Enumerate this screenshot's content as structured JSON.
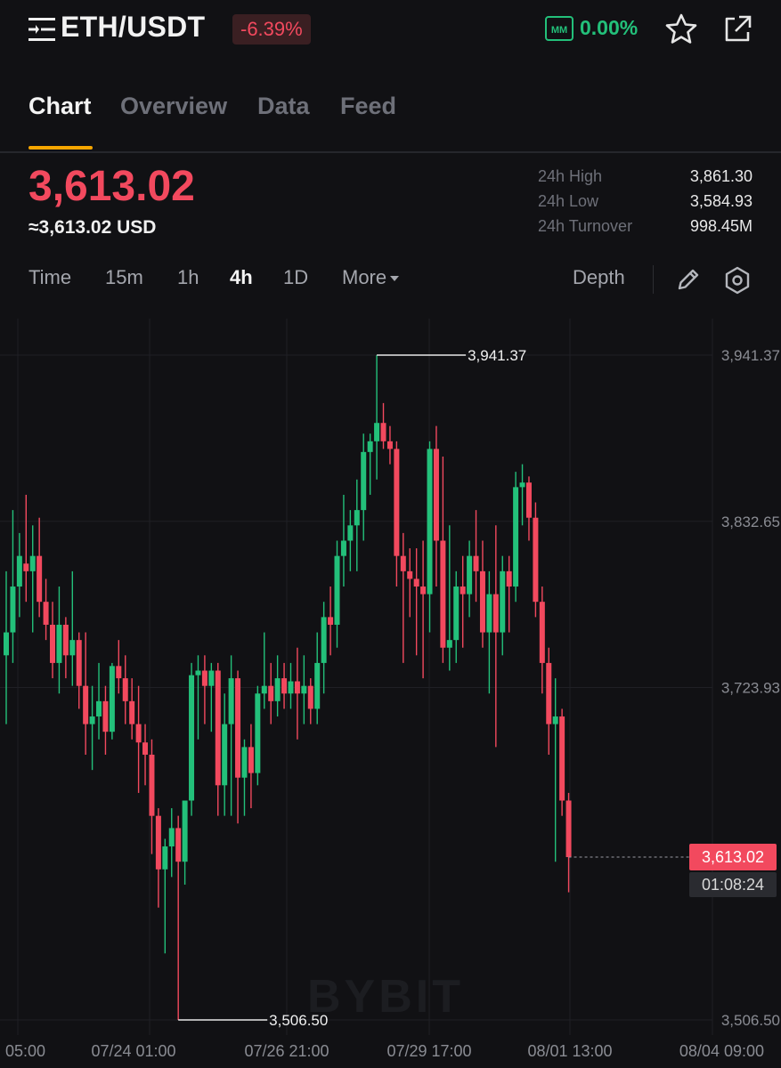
{
  "header": {
    "pair": "ETH/USDT",
    "change": "-6.39%",
    "mm_badge": "MM",
    "mm_value": "0.00%",
    "icons": [
      "menu-icon",
      "star-icon",
      "share-icon"
    ],
    "colors": {
      "down": "#f2495e",
      "up": "#23c07a",
      "accent": "#f7a600"
    }
  },
  "tabs": [
    {
      "label": "Chart",
      "active": true
    },
    {
      "label": "Overview",
      "active": false
    },
    {
      "label": "Data",
      "active": false
    },
    {
      "label": "Feed",
      "active": false
    }
  ],
  "price": {
    "last": "3,613.02",
    "usd": "≈3,613.02 USD"
  },
  "stats": [
    {
      "label": "24h High",
      "value": "3,861.30"
    },
    {
      "label": "24h Low",
      "value": "3,584.93"
    },
    {
      "label": "24h Turnover",
      "value": "998.45M"
    }
  ],
  "intervals": [
    {
      "label": "Time",
      "active": false
    },
    {
      "label": "15m",
      "active": false
    },
    {
      "label": "1h",
      "active": false
    },
    {
      "label": "4h",
      "active": true
    },
    {
      "label": "1D",
      "active": false
    },
    {
      "label": "More",
      "active": false
    }
  ],
  "toolbar": {
    "depth_label": "Depth",
    "icons": [
      "pencil-icon",
      "settings-icon"
    ]
  },
  "watermark": "BYBIT",
  "price_tag": "3,613.02",
  "countdown": "01:08:24",
  "chart_data": {
    "type": "candlestick",
    "interval": "4h",
    "y_ticks": [
      "3,941.37",
      "3,832.65",
      "3,723.93",
      "3,506.50"
    ],
    "x_ticks": [
      "05:00",
      "07/24 01:00",
      "07/26 21:00",
      "07/29 17:00",
      "08/01 13:00",
      "08/04 09:00"
    ],
    "ylim": [
      3506.5,
      3941.37
    ],
    "high_label": "3,941.37",
    "low_label": "3,506.50",
    "last_price": 3613.02,
    "candles": [
      {
        "o": 3745,
        "h": 3800,
        "l": 3700,
        "c": 3760
      },
      {
        "o": 3760,
        "h": 3840,
        "l": 3740,
        "c": 3790
      },
      {
        "o": 3790,
        "h": 3825,
        "l": 3770,
        "c": 3810
      },
      {
        "o": 3805,
        "h": 3850,
        "l": 3780,
        "c": 3800
      },
      {
        "o": 3800,
        "h": 3830,
        "l": 3760,
        "c": 3810
      },
      {
        "o": 3810,
        "h": 3835,
        "l": 3770,
        "c": 3780
      },
      {
        "o": 3780,
        "h": 3795,
        "l": 3755,
        "c": 3765
      },
      {
        "o": 3765,
        "h": 3780,
        "l": 3730,
        "c": 3740
      },
      {
        "o": 3740,
        "h": 3790,
        "l": 3720,
        "c": 3765
      },
      {
        "o": 3765,
        "h": 3770,
        "l": 3730,
        "c": 3745
      },
      {
        "o": 3745,
        "h": 3800,
        "l": 3725,
        "c": 3755
      },
      {
        "o": 3755,
        "h": 3760,
        "l": 3710,
        "c": 3725
      },
      {
        "o": 3725,
        "h": 3760,
        "l": 3680,
        "c": 3700
      },
      {
        "o": 3700,
        "h": 3725,
        "l": 3670,
        "c": 3705
      },
      {
        "o": 3705,
        "h": 3740,
        "l": 3690,
        "c": 3715
      },
      {
        "o": 3715,
        "h": 3725,
        "l": 3680,
        "c": 3695
      },
      {
        "o": 3695,
        "h": 3740,
        "l": 3690,
        "c": 3738
      },
      {
        "o": 3738,
        "h": 3755,
        "l": 3720,
        "c": 3730
      },
      {
        "o": 3730,
        "h": 3745,
        "l": 3700,
        "c": 3715
      },
      {
        "o": 3715,
        "h": 3730,
        "l": 3690,
        "c": 3700
      },
      {
        "o": 3700,
        "h": 3725,
        "l": 3655,
        "c": 3688
      },
      {
        "o": 3688,
        "h": 3700,
        "l": 3660,
        "c": 3680
      },
      {
        "o": 3680,
        "h": 3690,
        "l": 3615,
        "c": 3640
      },
      {
        "o": 3640,
        "h": 3645,
        "l": 3580,
        "c": 3605
      },
      {
        "o": 3605,
        "h": 3625,
        "l": 3550,
        "c": 3620
      },
      {
        "o": 3620,
        "h": 3645,
        "l": 3600,
        "c": 3632
      },
      {
        "o": 3632,
        "h": 3640,
        "l": 3506.5,
        "c": 3610
      },
      {
        "o": 3610,
        "h": 3650,
        "l": 3595,
        "c": 3650
      },
      {
        "o": 3650,
        "h": 3740,
        "l": 3640,
        "c": 3732
      },
      {
        "o": 3732,
        "h": 3745,
        "l": 3690,
        "c": 3735
      },
      {
        "o": 3735,
        "h": 3745,
        "l": 3700,
        "c": 3725
      },
      {
        "o": 3725,
        "h": 3740,
        "l": 3695,
        "c": 3735
      },
      {
        "o": 3735,
        "h": 3740,
        "l": 3640,
        "c": 3660
      },
      {
        "o": 3660,
        "h": 3720,
        "l": 3640,
        "c": 3700
      },
      {
        "o": 3700,
        "h": 3745,
        "l": 3640,
        "c": 3730
      },
      {
        "o": 3730,
        "h": 3735,
        "l": 3635,
        "c": 3665
      },
      {
        "o": 3665,
        "h": 3690,
        "l": 3640,
        "c": 3685
      },
      {
        "o": 3685,
        "h": 3700,
        "l": 3645,
        "c": 3668
      },
      {
        "o": 3668,
        "h": 3725,
        "l": 3660,
        "c": 3720
      },
      {
        "o": 3720,
        "h": 3760,
        "l": 3710,
        "c": 3725
      },
      {
        "o": 3725,
        "h": 3740,
        "l": 3700,
        "c": 3715
      },
      {
        "o": 3715,
        "h": 3745,
        "l": 3705,
        "c": 3730
      },
      {
        "o": 3730,
        "h": 3740,
        "l": 3710,
        "c": 3720
      },
      {
        "o": 3720,
        "h": 3740,
        "l": 3710,
        "c": 3728
      },
      {
        "o": 3728,
        "h": 3750,
        "l": 3690,
        "c": 3720
      },
      {
        "o": 3720,
        "h": 3745,
        "l": 3700,
        "c": 3725
      },
      {
        "o": 3725,
        "h": 3730,
        "l": 3700,
        "c": 3710
      },
      {
        "o": 3710,
        "h": 3760,
        "l": 3700,
        "c": 3740
      },
      {
        "o": 3740,
        "h": 3780,
        "l": 3720,
        "c": 3770
      },
      {
        "o": 3770,
        "h": 3790,
        "l": 3745,
        "c": 3765
      },
      {
        "o": 3765,
        "h": 3820,
        "l": 3750,
        "c": 3810
      },
      {
        "o": 3810,
        "h": 3850,
        "l": 3790,
        "c": 3820
      },
      {
        "o": 3820,
        "h": 3840,
        "l": 3800,
        "c": 3830
      },
      {
        "o": 3830,
        "h": 3860,
        "l": 3800,
        "c": 3840
      },
      {
        "o": 3840,
        "h": 3890,
        "l": 3820,
        "c": 3878
      },
      {
        "o": 3878,
        "h": 3890,
        "l": 3850,
        "c": 3885
      },
      {
        "o": 3885,
        "h": 3941.37,
        "l": 3860,
        "c": 3897
      },
      {
        "o": 3897,
        "h": 3910,
        "l": 3880,
        "c": 3885
      },
      {
        "o": 3885,
        "h": 3895,
        "l": 3870,
        "c": 3880
      },
      {
        "o": 3880,
        "h": 3885,
        "l": 3790,
        "c": 3810
      },
      {
        "o": 3810,
        "h": 3825,
        "l": 3740,
        "c": 3800
      },
      {
        "o": 3800,
        "h": 3815,
        "l": 3770,
        "c": 3795
      },
      {
        "o": 3795,
        "h": 3815,
        "l": 3745,
        "c": 3790
      },
      {
        "o": 3790,
        "h": 3820,
        "l": 3730,
        "c": 3785
      },
      {
        "o": 3785,
        "h": 3885,
        "l": 3760,
        "c": 3880
      },
      {
        "o": 3880,
        "h": 3895,
        "l": 3790,
        "c": 3820
      },
      {
        "o": 3820,
        "h": 3875,
        "l": 3740,
        "c": 3750
      },
      {
        "o": 3750,
        "h": 3830,
        "l": 3735,
        "c": 3755
      },
      {
        "o": 3755,
        "h": 3800,
        "l": 3740,
        "c": 3790
      },
      {
        "o": 3790,
        "h": 3810,
        "l": 3750,
        "c": 3785
      },
      {
        "o": 3785,
        "h": 3820,
        "l": 3770,
        "c": 3810
      },
      {
        "o": 3810,
        "h": 3840,
        "l": 3780,
        "c": 3800
      },
      {
        "o": 3800,
        "h": 3820,
        "l": 3750,
        "c": 3760
      },
      {
        "o": 3760,
        "h": 3800,
        "l": 3720,
        "c": 3785
      },
      {
        "o": 3785,
        "h": 3830,
        "l": 3685,
        "c": 3760
      },
      {
        "o": 3760,
        "h": 3810,
        "l": 3745,
        "c": 3800
      },
      {
        "o": 3800,
        "h": 3810,
        "l": 3760,
        "c": 3790
      },
      {
        "o": 3790,
        "h": 3865,
        "l": 3780,
        "c": 3855
      },
      {
        "o": 3855,
        "h": 3870,
        "l": 3830,
        "c": 3858
      },
      {
        "o": 3858,
        "h": 3862,
        "l": 3820,
        "c": 3835
      },
      {
        "o": 3835,
        "h": 3845,
        "l": 3770,
        "c": 3780
      },
      {
        "o": 3780,
        "h": 3790,
        "l": 3720,
        "c": 3740
      },
      {
        "o": 3740,
        "h": 3750,
        "l": 3680,
        "c": 3700
      },
      {
        "o": 3700,
        "h": 3730,
        "l": 3610,
        "c": 3705
      },
      {
        "o": 3705,
        "h": 3710,
        "l": 3640,
        "c": 3650
      },
      {
        "o": 3650,
        "h": 3655,
        "l": 3590,
        "c": 3613.02
      }
    ]
  }
}
